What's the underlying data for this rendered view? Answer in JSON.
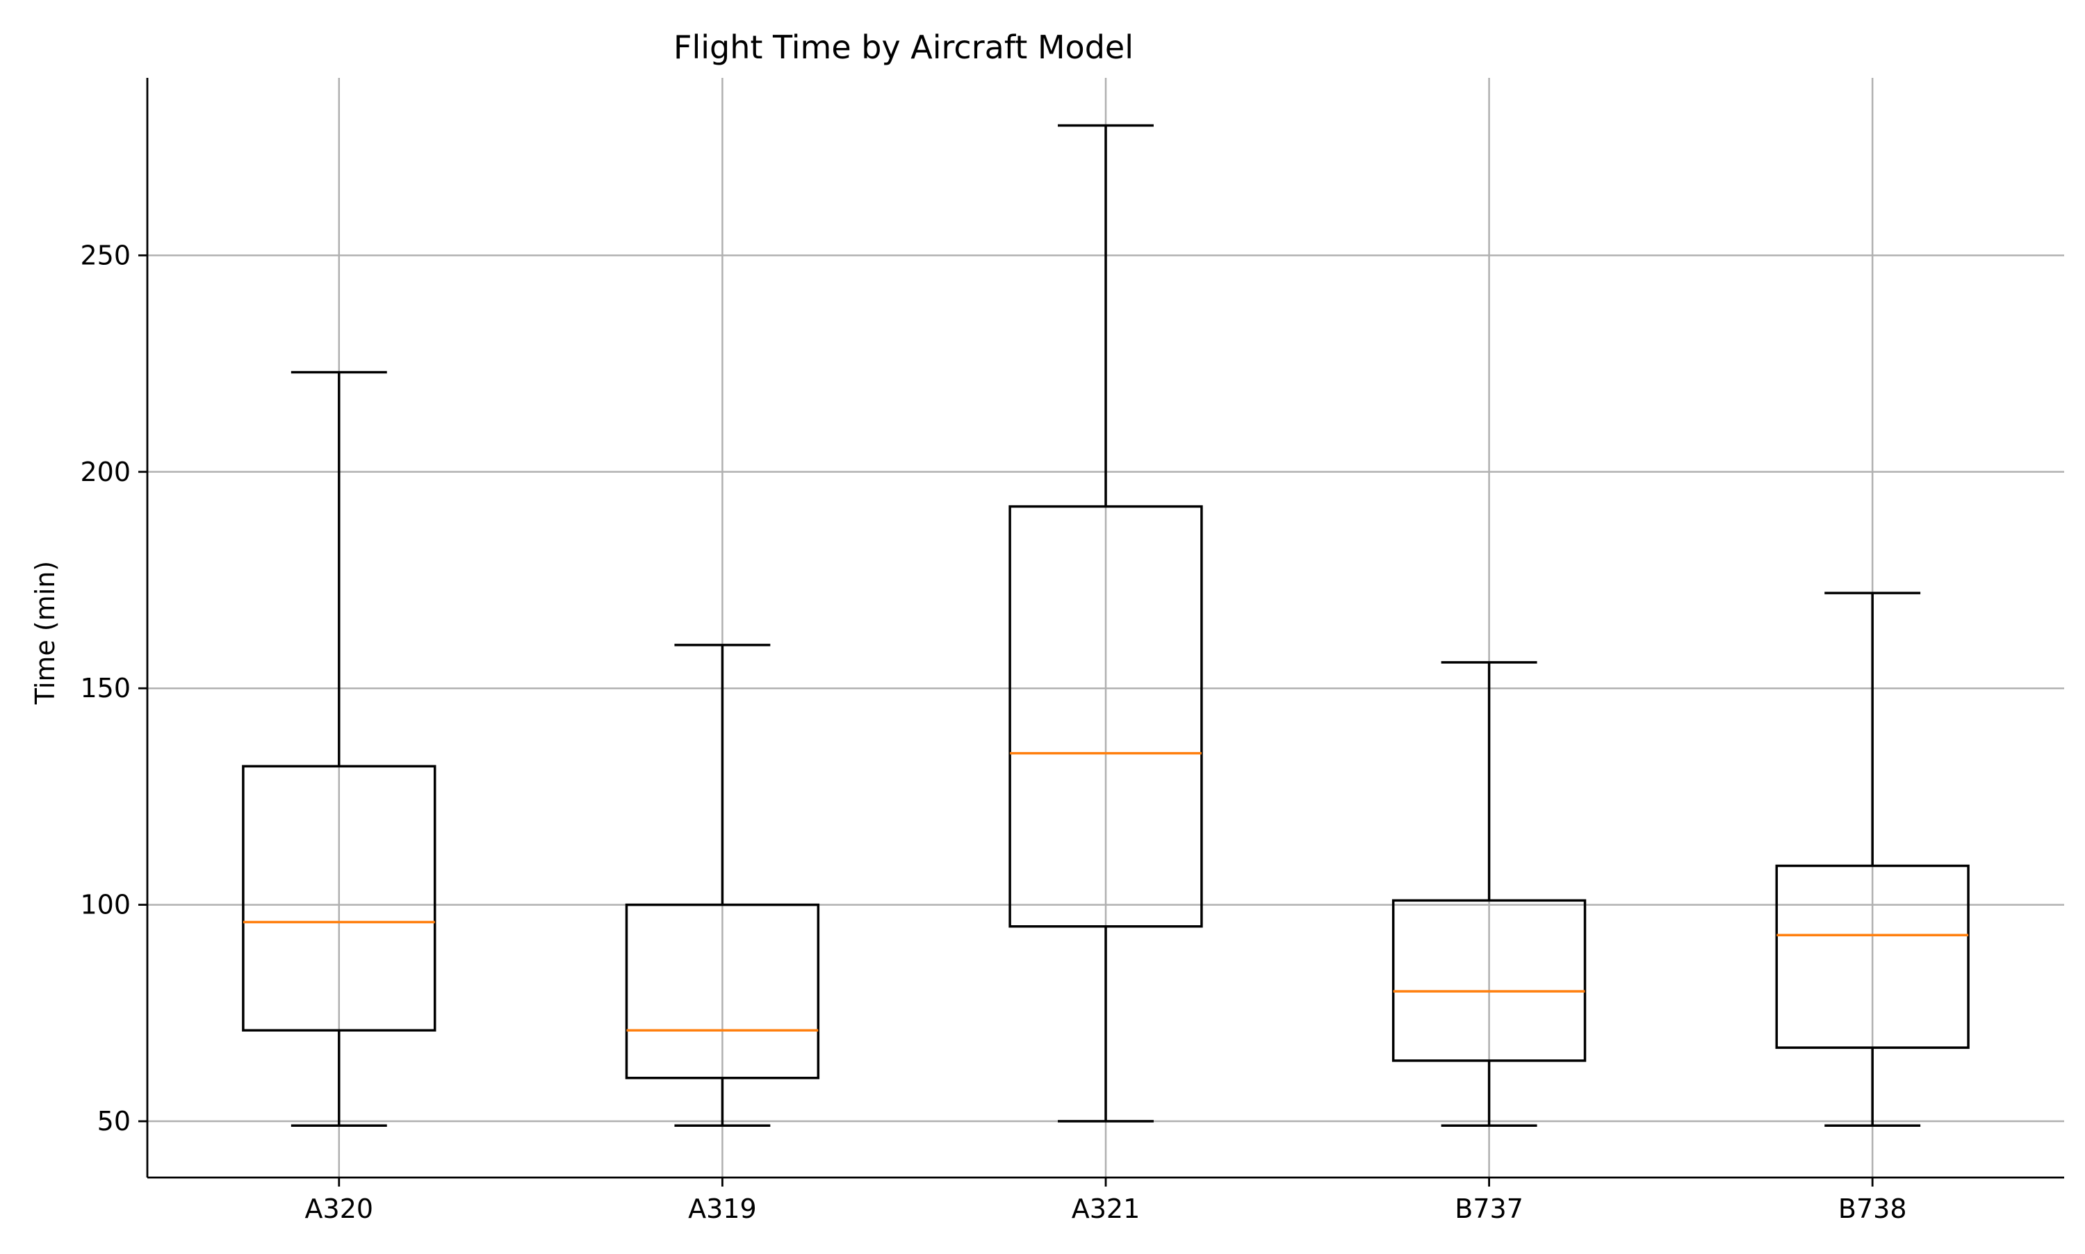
{
  "chart_data": {
    "type": "box",
    "title": "Flight Time by Aircraft Model",
    "xlabel": "",
    "ylabel": "Time (min)",
    "ylim": [
      37,
      291
    ],
    "yticks": [
      50,
      100,
      150,
      200,
      250
    ],
    "grid": true,
    "categories": [
      "A320",
      "A319",
      "A321",
      "B737",
      "B738"
    ],
    "boxes": [
      {
        "name": "A320",
        "whisker_low": 49,
        "q1": 71,
        "median": 96,
        "q3": 132,
        "whisker_high": 223
      },
      {
        "name": "A319",
        "whisker_low": 49,
        "q1": 60,
        "median": 71,
        "q3": 100,
        "whisker_high": 160
      },
      {
        "name": "A321",
        "whisker_low": 50,
        "q1": 95,
        "median": 135,
        "q3": 192,
        "whisker_high": 280
      },
      {
        "name": "B737",
        "whisker_low": 49,
        "q1": 64,
        "median": 80,
        "q3": 101,
        "whisker_high": 156
      },
      {
        "name": "B738",
        "whisker_low": 49,
        "q1": 67,
        "median": 93,
        "q3": 109,
        "whisker_high": 172
      }
    ],
    "colors": {
      "box": "#000000",
      "median": "#ff7f0e",
      "grid": "#b0b0b0",
      "axis": "#000000"
    }
  }
}
